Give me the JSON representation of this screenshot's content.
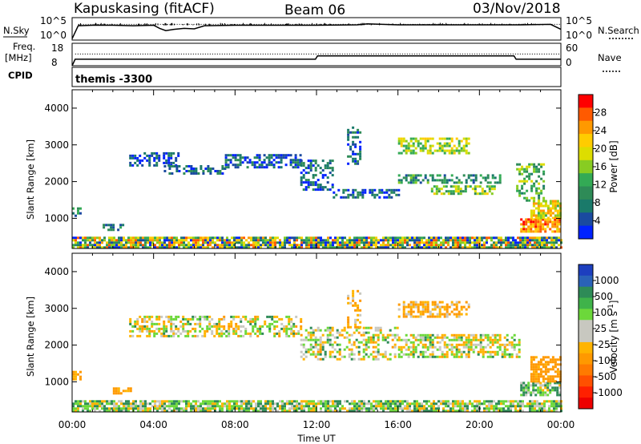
{
  "header": {
    "station": "Kapuskasing (fitACF)",
    "beam": "Beam 06",
    "date": "03/Nov/2018"
  },
  "left_labels": {
    "nsky": "N.Sky",
    "freq_line1": "Freq.",
    "freq_line2": "[MHz]",
    "cpid": "CPID"
  },
  "right_labels": {
    "nsearch": "N.Search",
    "nave": "Nave"
  },
  "axis_left_ticks": {
    "noise_top": "10^5",
    "noise_bottom": "10^0",
    "freq_top": "18",
    "freq_bottom": "8"
  },
  "axis_right_ticks": {
    "noise_top": "10^5",
    "noise_bottom": "10^0",
    "nave_top": "60",
    "nave_bottom": "0"
  },
  "cpid_text": "themis -3300",
  "x_axis": {
    "label": "Time UT",
    "ticks": [
      "00:00",
      "04:00",
      "08:00",
      "12:00",
      "16:00",
      "20:00",
      "00:00"
    ]
  },
  "colorbars": {
    "power": {
      "label": "Power [dB]",
      "ticks": [
        "28",
        "24",
        "20",
        "16",
        "12",
        "8",
        "4"
      ],
      "colors": [
        "#ff0000",
        "#ff5a00",
        "#ff9900",
        "#ffcc00",
        "#dddd00",
        "#88cc22",
        "#33aa55",
        "#2e8b57",
        "#1a7a6a",
        "#1a4aa0",
        "#0022ff"
      ]
    },
    "velocity": {
      "label": "Velocity [m s^-1]",
      "ticks": [
        "1000",
        "500",
        "100",
        "25",
        "-25",
        "-100",
        "-500",
        "-1000"
      ],
      "colors": [
        "#1d3fbf",
        "#2a62b8",
        "#2e8b57",
        "#3fb34a",
        "#6cd83a",
        "#c8c8c0",
        "#c8c8c0",
        "#ffb400",
        "#ff9900",
        "#ff7a00",
        "#ff5000",
        "#ff2000",
        "#ee0000"
      ]
    }
  },
  "chart_data": [
    {
      "type": "line",
      "title": "N.Sky / N.Search",
      "x": [
        0,
        0.3,
        1,
        2,
        3,
        4,
        4.3,
        4.6,
        5,
        5.5,
        6,
        6.5,
        8,
        10,
        12,
        14,
        14.5,
        16,
        18,
        20,
        22,
        23.5,
        24
      ],
      "series": [
        {
          "name": "N.Sky",
          "values": [
            0.3,
            3.2,
            3.3,
            3.3,
            3.2,
            3.3,
            2.6,
            2.1,
            2.4,
            2.6,
            2.5,
            3.2,
            3.3,
            3.3,
            3.3,
            3.4,
            3.6,
            3.4,
            3.4,
            3.4,
            3.4,
            3.5,
            2.4
          ]
        }
      ],
      "ylim": [
        0,
        5
      ],
      "yscale": "log10"
    },
    {
      "type": "line",
      "title": "Freq. / Nave",
      "x": [
        0,
        0.15,
        11.95,
        12.05,
        21.7,
        21.8,
        24
      ],
      "series": [
        {
          "name": "Freq.",
          "values": [
            8,
            10.9,
            10.9,
            12.4,
            12.4,
            10.9,
            10.9
          ]
        },
        {
          "name": "Nave",
          "values": [
            null,
            36,
            36,
            36,
            36,
            36,
            36
          ]
        }
      ],
      "ylim": [
        8,
        18
      ]
    },
    {
      "type": "heatmap",
      "title": "Power [dB]",
      "xlabel": "Time UT",
      "ylabel": "Slant Range [km]",
      "xlim": [
        0,
        24
      ],
      "ylim": [
        180,
        4500
      ],
      "bands": [
        {
          "x0": 0,
          "x1": 24,
          "r0": 200,
          "r1": 500,
          "level": "mixed-low",
          "density": 0.85
        },
        {
          "x0": 0,
          "x1": 0.4,
          "r0": 1100,
          "r1": 1300,
          "level": 8,
          "density": 0.7
        },
        {
          "x0": 1.5,
          "x1": 2.5,
          "r0": 700,
          "r1": 850,
          "level": 8,
          "density": 0.5
        },
        {
          "x0": 2.8,
          "x1": 5.2,
          "r0": 2450,
          "r1": 2800,
          "level": 4,
          "density": 0.55
        },
        {
          "x0": 4.5,
          "x1": 7.5,
          "r0": 2250,
          "r1": 2450,
          "level": 6,
          "density": 0.55
        },
        {
          "x0": 7.5,
          "x1": 11.2,
          "r0": 2400,
          "r1": 2750,
          "level": 5,
          "density": 0.55
        },
        {
          "x0": 11.2,
          "x1": 12.8,
          "r0": 1800,
          "r1": 2600,
          "level": 6,
          "density": 0.45
        },
        {
          "x0": 12.8,
          "x1": 16,
          "r0": 1600,
          "r1": 1800,
          "level": 6,
          "density": 0.55
        },
        {
          "x0": 13.5,
          "x1": 14.2,
          "r0": 2500,
          "r1": 3500,
          "level": 6,
          "density": 0.45
        },
        {
          "x0": 16,
          "x1": 19.5,
          "r0": 2800,
          "r1": 3200,
          "level": 18,
          "density": 0.6
        },
        {
          "x0": 16,
          "x1": 21,
          "r0": 2000,
          "r1": 2200,
          "level": 10,
          "density": 0.5
        },
        {
          "x0": 17.5,
          "x1": 20.8,
          "r0": 1650,
          "r1": 1900,
          "level": 16,
          "density": 0.6
        },
        {
          "x0": 21.8,
          "x1": 23.2,
          "r0": 1500,
          "r1": 2500,
          "level": 14,
          "density": 0.45
        },
        {
          "x0": 22,
          "x1": 24,
          "r0": 650,
          "r1": 1000,
          "level": 26,
          "density": 0.85
        },
        {
          "x0": 22.5,
          "x1": 24,
          "r0": 1000,
          "r1": 1500,
          "level": 20,
          "density": 0.7
        }
      ]
    },
    {
      "type": "heatmap",
      "title": "Velocity [m s^-1]",
      "xlabel": "Time UT",
      "ylabel": "Slant Range [km]",
      "xlim": [
        0,
        24
      ],
      "ylim": [
        180,
        4500
      ],
      "bands": [
        {
          "x0": 0,
          "x1": 24,
          "r0": 200,
          "r1": 500,
          "level": 50,
          "density": 0.8
        },
        {
          "x0": 0,
          "x1": 0.4,
          "r0": 1100,
          "r1": 1300,
          "level": -150,
          "density": 0.7
        },
        {
          "x0": 2,
          "x1": 3,
          "r0": 700,
          "r1": 850,
          "level": -150,
          "density": 0.6
        },
        {
          "x0": 2.8,
          "x1": 11.2,
          "r0": 2250,
          "r1": 2800,
          "level": 0,
          "density": 0.5
        },
        {
          "x0": 11.2,
          "x1": 16,
          "r0": 1600,
          "r1": 2500,
          "level": 0,
          "density": 0.45
        },
        {
          "x0": 13.5,
          "x1": 14.2,
          "r0": 2500,
          "r1": 3500,
          "level": -100,
          "density": 0.4
        },
        {
          "x0": 16,
          "x1": 19.5,
          "r0": 2800,
          "r1": 3200,
          "level": -100,
          "density": 0.55
        },
        {
          "x0": 16,
          "x1": 22,
          "r0": 1650,
          "r1": 2300,
          "level": 0,
          "density": 0.6
        },
        {
          "x0": 22,
          "x1": 24,
          "r0": 650,
          "r1": 1000,
          "level": 80,
          "density": 0.7
        },
        {
          "x0": 22.5,
          "x1": 24,
          "r0": 1000,
          "r1": 1700,
          "level": -200,
          "density": 0.7
        }
      ]
    }
  ]
}
